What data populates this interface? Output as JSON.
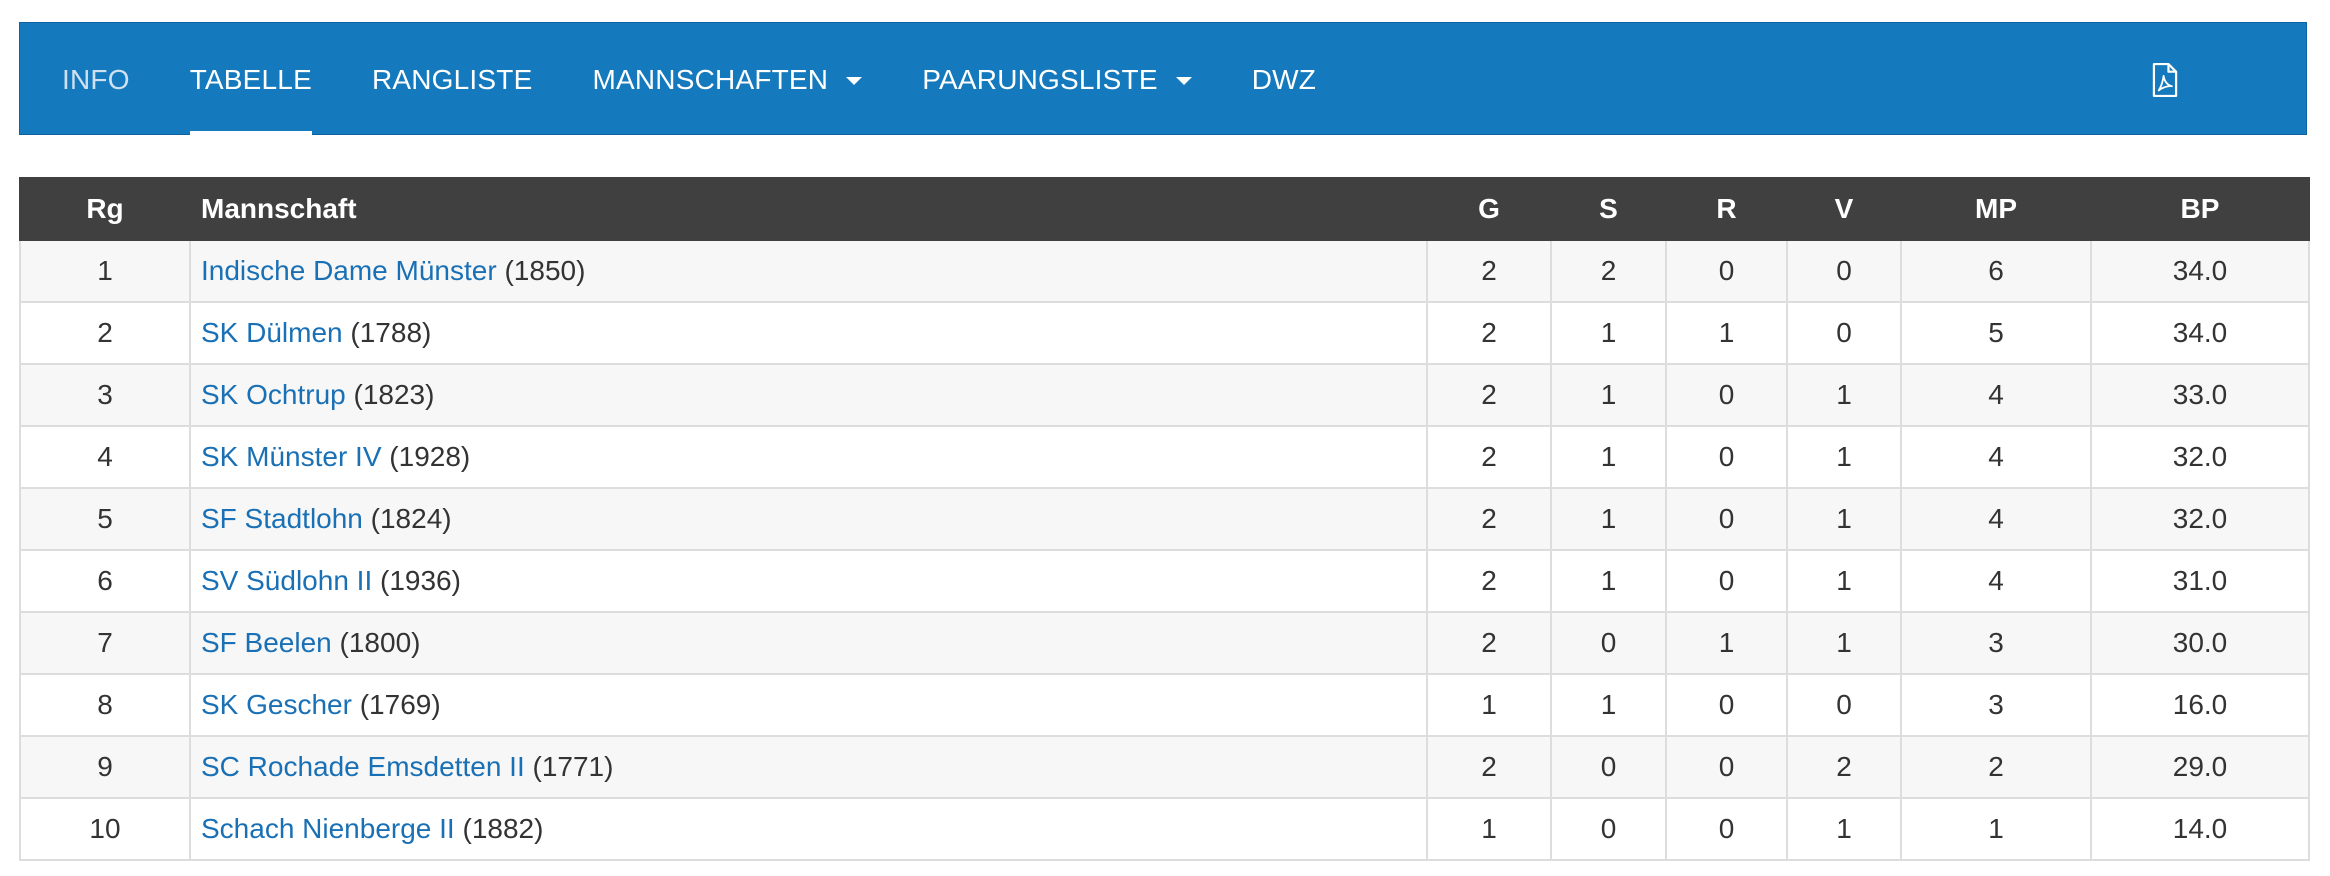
{
  "nav": {
    "items": [
      {
        "label": "INFO",
        "active": false,
        "dropdown": false
      },
      {
        "label": "TABELLE",
        "active": true,
        "dropdown": false
      },
      {
        "label": "RANGLISTE",
        "active": false,
        "dropdown": false
      },
      {
        "label": "MANNSCHAFTEN",
        "active": false,
        "dropdown": true
      },
      {
        "label": "PAARUNGSLISTE",
        "active": false,
        "dropdown": true
      },
      {
        "label": "DWZ",
        "active": false,
        "dropdown": false
      }
    ],
    "pdf_icon": "pdf-file-icon"
  },
  "colors": {
    "navbar": "#1579bd",
    "header_bg": "#404040",
    "link": "#1a70b5",
    "row_stripe": "#f7f7f7"
  },
  "table": {
    "columns": [
      "Rg",
      "Mannschaft",
      "G",
      "S",
      "R",
      "V",
      "MP",
      "BP"
    ],
    "rows": [
      {
        "rg": "1",
        "team": "Indische Dame Münster",
        "dwz": "(1850)",
        "g": "2",
        "s": "2",
        "r": "0",
        "v": "0",
        "mp": "6",
        "bp": "34.0"
      },
      {
        "rg": "2",
        "team": "SK Dülmen",
        "dwz": "(1788)",
        "g": "2",
        "s": "1",
        "r": "1",
        "v": "0",
        "mp": "5",
        "bp": "34.0"
      },
      {
        "rg": "3",
        "team": "SK Ochtrup",
        "dwz": "(1823)",
        "g": "2",
        "s": "1",
        "r": "0",
        "v": "1",
        "mp": "4",
        "bp": "33.0"
      },
      {
        "rg": "4",
        "team": "SK Münster IV",
        "dwz": "(1928)",
        "g": "2",
        "s": "1",
        "r": "0",
        "v": "1",
        "mp": "4",
        "bp": "32.0"
      },
      {
        "rg": "5",
        "team": "SF Stadtlohn",
        "dwz": "(1824)",
        "g": "2",
        "s": "1",
        "r": "0",
        "v": "1",
        "mp": "4",
        "bp": "32.0"
      },
      {
        "rg": "6",
        "team": "SV Südlohn II",
        "dwz": "(1936)",
        "g": "2",
        "s": "1",
        "r": "0",
        "v": "1",
        "mp": "4",
        "bp": "31.0"
      },
      {
        "rg": "7",
        "team": "SF Beelen",
        "dwz": "(1800)",
        "g": "2",
        "s": "0",
        "r": "1",
        "v": "1",
        "mp": "3",
        "bp": "30.0"
      },
      {
        "rg": "8",
        "team": "SK Gescher",
        "dwz": "(1769)",
        "g": "1",
        "s": "1",
        "r": "0",
        "v": "0",
        "mp": "3",
        "bp": "16.0"
      },
      {
        "rg": "9",
        "team": "SC Rochade Emsdetten II",
        "dwz": "(1771)",
        "g": "2",
        "s": "0",
        "r": "0",
        "v": "2",
        "mp": "2",
        "bp": "29.0"
      },
      {
        "rg": "10",
        "team": "Schach Nienberge II",
        "dwz": "(1882)",
        "g": "1",
        "s": "0",
        "r": "0",
        "v": "1",
        "mp": "1",
        "bp": "14.0"
      }
    ]
  }
}
